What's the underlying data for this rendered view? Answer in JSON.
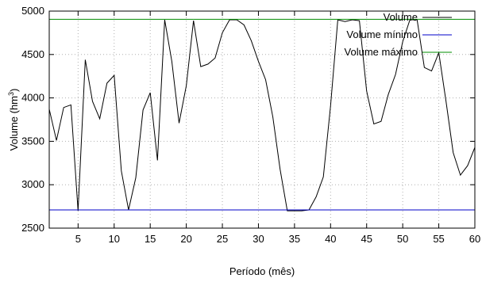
{
  "chart_data": {
    "type": "line",
    "xlabel": "Período (mês)",
    "ylabel_prefix": "Volume (hm",
    "ylabel_sup": "3",
    "ylabel_suffix": ")",
    "xlim": [
      1,
      60
    ],
    "ylim": [
      2500,
      5000
    ],
    "x_ticks": [
      5,
      10,
      15,
      20,
      25,
      30,
      35,
      40,
      45,
      50,
      55,
      60
    ],
    "y_ticks": [
      2500,
      3000,
      3500,
      4000,
      4500,
      5000
    ],
    "grid": true,
    "grid_style": "dotted",
    "legend_position": "top-right",
    "series": [
      {
        "name": "Volume",
        "color": "#000000",
        "x": [
          1,
          2,
          3,
          4,
          5,
          6,
          7,
          8,
          9,
          10,
          11,
          12,
          13,
          14,
          15,
          16,
          17,
          18,
          19,
          20,
          21,
          22,
          23,
          24,
          25,
          26,
          27,
          28,
          29,
          30,
          31,
          32,
          33,
          34,
          35,
          36,
          37,
          38,
          39,
          40,
          41,
          42,
          43,
          44,
          45,
          46,
          47,
          48,
          49,
          50,
          51,
          52,
          53,
          54,
          55,
          56,
          57,
          58,
          59,
          60
        ],
        "y": [
          3870,
          3510,
          3890,
          3920,
          2700,
          4440,
          3960,
          3760,
          4170,
          4260,
          3160,
          2710,
          3080,
          3860,
          4060,
          3280,
          4900,
          4420,
          3710,
          4140,
          4890,
          4360,
          4390,
          4460,
          4750,
          4900,
          4900,
          4840,
          4660,
          4420,
          4210,
          3780,
          3180,
          2700,
          2700,
          2700,
          2710,
          2860,
          3090,
          3910,
          4900,
          4880,
          4900,
          4890,
          4080,
          3700,
          3730,
          4040,
          4270,
          4650,
          4900,
          4900,
          4350,
          4310,
          4520,
          3960,
          3370,
          3110,
          3220,
          3430
        ]
      },
      {
        "name": "Volume mínimo",
        "color": "#0000c8",
        "x": [
          1,
          60
        ],
        "y": [
          2710,
          2710
        ]
      },
      {
        "name": "Volume máximo",
        "color": "#008c00",
        "x": [
          1,
          60
        ],
        "y": [
          4905,
          4905
        ]
      }
    ]
  }
}
